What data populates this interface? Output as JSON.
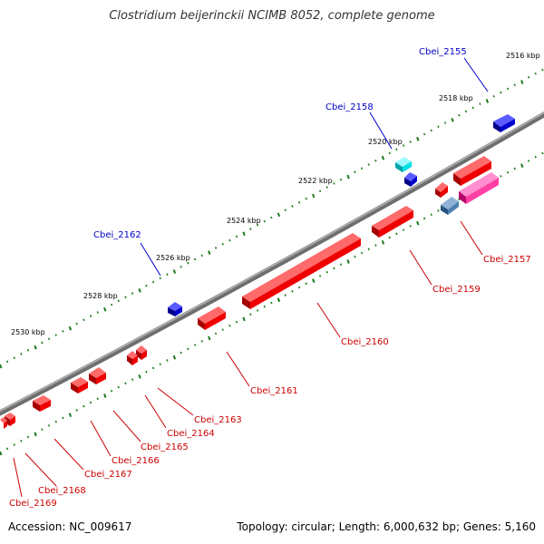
{
  "title": "Clostridium beijerinckii NCIMB 8052, complete genome",
  "footer": {
    "accession": "Accession: NC_009617",
    "summary": "Topology: circular; Length: 6,000,632 bp; Genes: 5,160"
  },
  "colors": {
    "backbone": "#808080",
    "tick": "#1a7a1a",
    "gene_forward": "#0000dd",
    "gene_reverse": "#ee0000",
    "label_forward": "#0000cc",
    "label_reverse": "#cc0000"
  },
  "ruler": [
    {
      "label": "2516 kbp"
    },
    {
      "label": "2518 kbp"
    },
    {
      "label": "2520 kbp"
    },
    {
      "label": "2522 kbp"
    },
    {
      "label": "2524 kbp"
    },
    {
      "label": "2526 kbp"
    },
    {
      "label": "2528 kbp"
    },
    {
      "label": "2530 kbp"
    }
  ],
  "genes": [
    {
      "label": "Cbei_2155",
      "strand": "forward"
    },
    {
      "label": "Cbei_2158",
      "strand": "forward"
    },
    {
      "label": "Cbei_2162",
      "strand": "forward"
    },
    {
      "label": "Cbei_2157",
      "strand": "reverse"
    },
    {
      "label": "Cbei_2159",
      "strand": "reverse"
    },
    {
      "label": "Cbei_2160",
      "strand": "reverse"
    },
    {
      "label": "Cbei_2161",
      "strand": "reverse"
    },
    {
      "label": "Cbei_2163",
      "strand": "reverse"
    },
    {
      "label": "Cbei_2164",
      "strand": "reverse"
    },
    {
      "label": "Cbei_2165",
      "strand": "reverse"
    },
    {
      "label": "Cbei_2166",
      "strand": "reverse"
    },
    {
      "label": "Cbei_2167",
      "strand": "reverse"
    },
    {
      "label": "Cbei_2168",
      "strand": "reverse"
    },
    {
      "label": "Cbei_2169",
      "strand": "reverse"
    }
  ]
}
